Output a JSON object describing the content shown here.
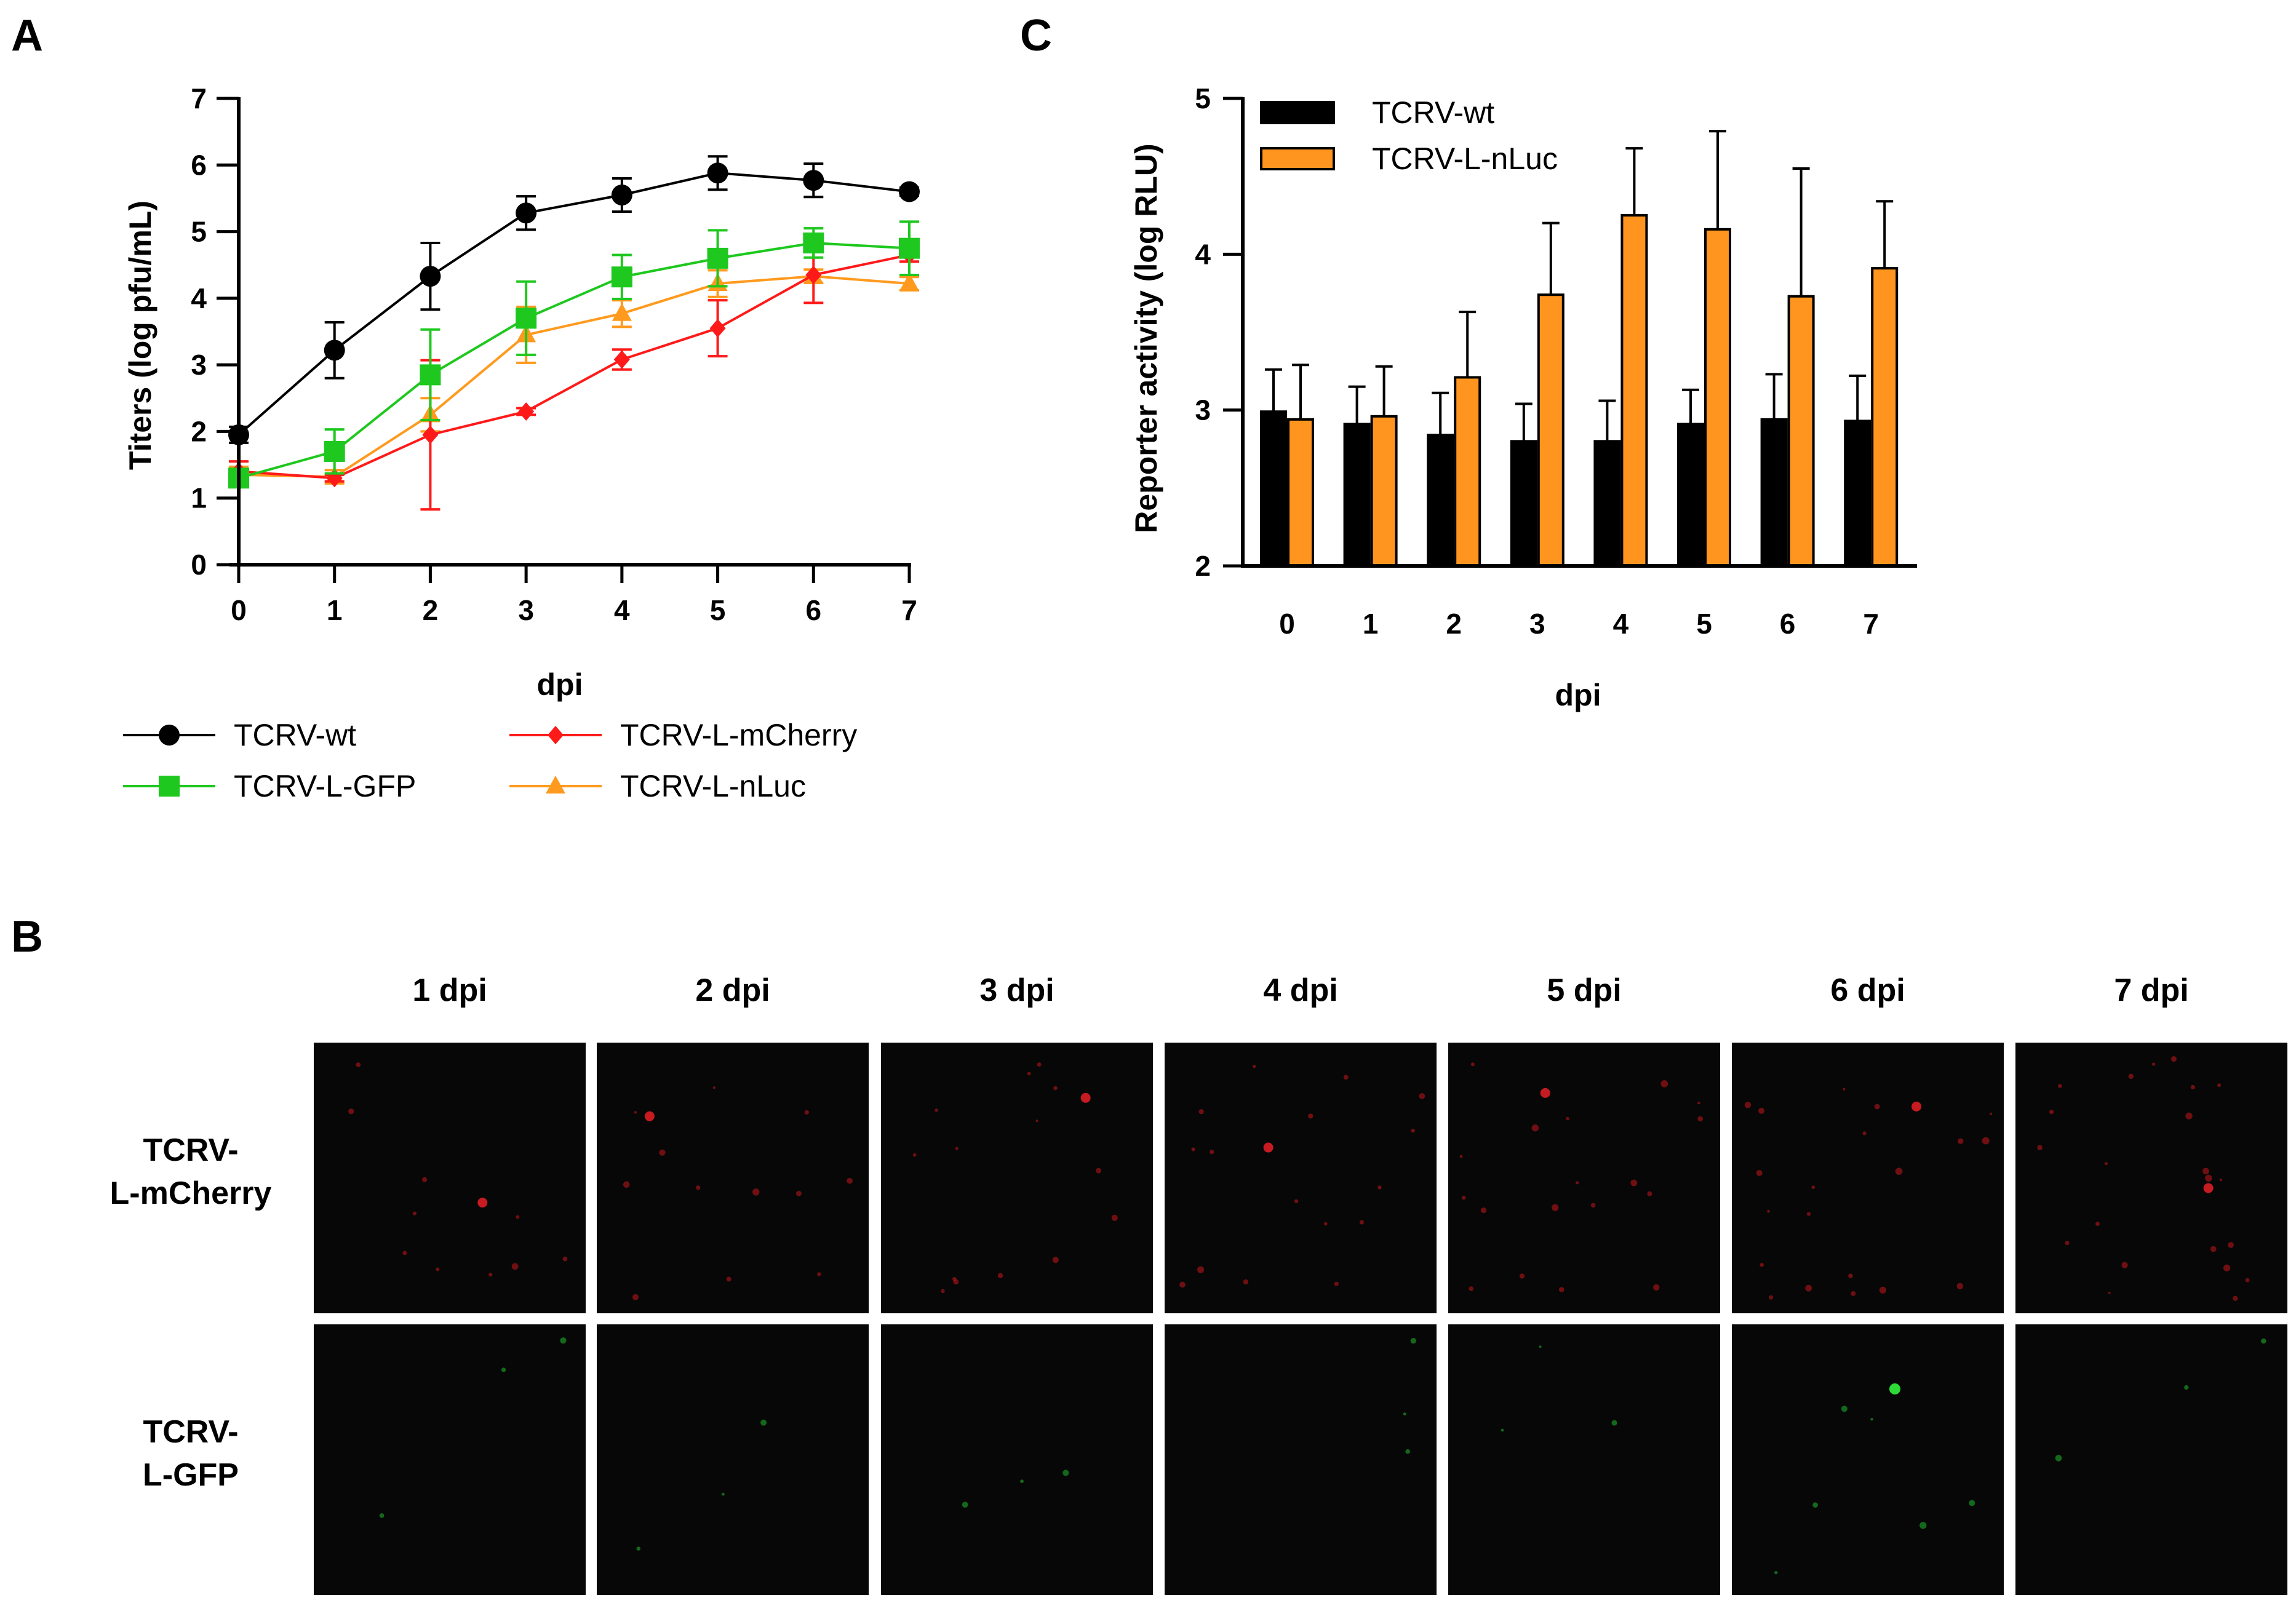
{
  "panels": {
    "a": "A",
    "b": "B",
    "c": "C"
  },
  "colors": {
    "wt": "#000000",
    "gfp": "#1ec81e",
    "mcherry": "#ff1a1a",
    "nluc": "#ff9a1e",
    "bar_orange": "#ff951e",
    "micro_bg": "#070707"
  },
  "chart_data": [
    {
      "panel": "A",
      "type": "line",
      "x": [
        0,
        1,
        2,
        3,
        4,
        5,
        6,
        7
      ],
      "xticks": [
        "0",
        "1",
        "2",
        "3",
        "4",
        "5",
        "6",
        "7"
      ],
      "xlabel": "dpi",
      "ylabel": "Titers (log pfu/mL)",
      "ylim": [
        0,
        7
      ],
      "yticks": [
        "0",
        "1",
        "2",
        "3",
        "4",
        "5",
        "6",
        "7"
      ],
      "series": [
        {
          "name": "TCRV-wt",
          "marker": "circle",
          "values": [
            1.95,
            3.22,
            4.33,
            5.28,
            5.55,
            5.88,
            5.77,
            5.6
          ],
          "errors": [
            0.12,
            0.42,
            0.5,
            0.25,
            0.25,
            0.25,
            0.25,
            0.06
          ]
        },
        {
          "name": "TCRV-L-GFP",
          "marker": "square",
          "values": [
            1.3,
            1.7,
            2.85,
            3.7,
            4.32,
            4.6,
            4.83,
            4.75
          ],
          "errors": [
            0.1,
            0.33,
            0.68,
            0.55,
            0.33,
            0.42,
            0.22,
            0.4
          ]
        },
        {
          "name": "TCRV-L-mCherry",
          "marker": "diamond",
          "values": [
            1.4,
            1.3,
            1.95,
            2.3,
            3.08,
            3.55,
            4.35,
            4.65
          ],
          "errors": [
            0.15,
            0.05,
            1.12,
            0.05,
            0.15,
            0.42,
            0.42,
            0.1
          ]
        },
        {
          "name": "TCRV-L-nLuc",
          "marker": "triangle",
          "values": [
            1.35,
            1.32,
            2.25,
            3.45,
            3.77,
            4.22,
            4.33,
            4.22
          ],
          "errors": [
            0.12,
            0.1,
            0.25,
            0.42,
            0.2,
            0.2,
            0.1,
            0.1
          ]
        }
      ]
    },
    {
      "panel": "C",
      "type": "bar",
      "categories": [
        "0",
        "1",
        "2",
        "3",
        "4",
        "5",
        "6",
        "7"
      ],
      "xlabel": "dpi",
      "ylabel": "Reporter activity (log RLU)",
      "ylim": [
        2,
        5
      ],
      "yticks": [
        "2",
        "3",
        "4",
        "5"
      ],
      "series": [
        {
          "name": "TCRV-wt",
          "values": [
            2.99,
            2.91,
            2.84,
            2.8,
            2.8,
            2.91,
            2.94,
            2.93
          ],
          "errors": [
            0.27,
            0.24,
            0.27,
            0.24,
            0.26,
            0.22,
            0.29,
            0.29
          ]
        },
        {
          "name": "TCRV-L-nLuc",
          "values": [
            2.94,
            2.96,
            3.21,
            3.74,
            4.25,
            4.16,
            3.73,
            3.91
          ],
          "errors": [
            0.35,
            0.32,
            0.42,
            0.46,
            0.43,
            0.63,
            0.82,
            0.43
          ]
        }
      ]
    }
  ],
  "micrographs": {
    "columns": [
      "1 dpi",
      "2 dpi",
      "3 dpi",
      "4 dpi",
      "5 dpi",
      "6 dpi",
      "7 dpi"
    ],
    "rows": [
      {
        "label_line1": "TCRV-",
        "label_line2": "L-mCherry",
        "channel": "red"
      },
      {
        "label_line1": "TCRV-",
        "label_line2": "L-GFP",
        "channel": "green"
      }
    ]
  }
}
